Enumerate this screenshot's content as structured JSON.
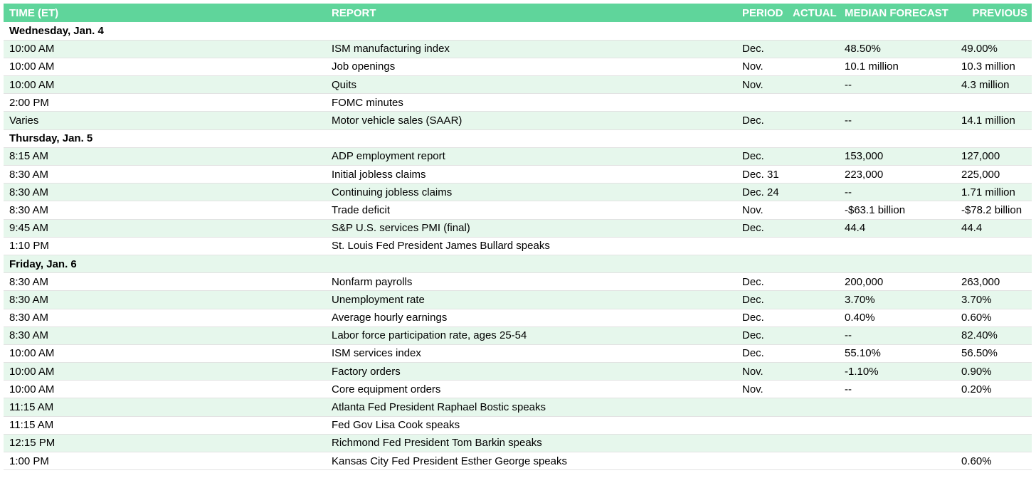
{
  "header": {
    "time": "TIME (ET)",
    "report": "REPORT",
    "period": "PERIOD",
    "actual": "ACTUAL",
    "median_forecast": "MEDIAN FORECAST",
    "previous": "PREVIOUS"
  },
  "colors": {
    "header_bg": "#5fd59b",
    "header_text": "#ffffff",
    "row_stripe": "#e6f7ec"
  },
  "rows": [
    {
      "type": "day",
      "label": "Wednesday, Jan. 4"
    },
    {
      "type": "item",
      "time": "10:00 AM",
      "report": "ISM manufacturing index",
      "period": "Dec.",
      "actual": "",
      "forecast": "48.50%",
      "previous": "49.00%"
    },
    {
      "type": "item",
      "time": "10:00 AM",
      "report": "Job openings",
      "period": "Nov.",
      "actual": "",
      "forecast": "10.1 million",
      "previous": "10.3 million"
    },
    {
      "type": "item",
      "time": "10:00 AM",
      "report": "Quits",
      "period": "Nov.",
      "actual": "",
      "forecast": "--",
      "previous": "4.3 million"
    },
    {
      "type": "item",
      "time": "2:00 PM",
      "report": "FOMC minutes",
      "period": "",
      "actual": "",
      "forecast": "",
      "previous": ""
    },
    {
      "type": "item",
      "time": "Varies",
      "report": "Motor vehicle sales (SAAR)",
      "period": "Dec.",
      "actual": "",
      "forecast": "--",
      "previous": "14.1 million"
    },
    {
      "type": "day",
      "label": "Thursday, Jan. 5"
    },
    {
      "type": "item",
      "time": "8:15 AM",
      "report": "ADP employment report",
      "period": "Dec.",
      "actual": "",
      "forecast": "153,000",
      "previous": "127,000"
    },
    {
      "type": "item",
      "time": "8:30 AM",
      "report": "Initial jobless claims",
      "period": "Dec. 31",
      "actual": "",
      "forecast": "223,000",
      "previous": "225,000"
    },
    {
      "type": "item",
      "time": "8:30 AM",
      "report": "Continuing jobless claims",
      "period": "Dec. 24",
      "actual": "",
      "forecast": "--",
      "previous": "1.71 million"
    },
    {
      "type": "item",
      "time": "8:30 AM",
      "report": "Trade deficit",
      "period": "Nov.",
      "actual": "",
      "forecast": "-$63.1 billion",
      "previous": "-$78.2 billion"
    },
    {
      "type": "item",
      "time": "9:45 AM",
      "report": "S&P U.S. services PMI (final)",
      "period": "Dec.",
      "actual": "",
      "forecast": "44.4",
      "previous": "44.4"
    },
    {
      "type": "item",
      "time": "1:10 PM",
      "report": "St. Louis Fed President James Bullard speaks",
      "period": "",
      "actual": "",
      "forecast": "",
      "previous": ""
    },
    {
      "type": "day",
      "label": "Friday, Jan. 6"
    },
    {
      "type": "item",
      "time": "8:30 AM",
      "report": "Nonfarm payrolls",
      "period": "Dec.",
      "actual": "",
      "forecast": "200,000",
      "previous": "263,000"
    },
    {
      "type": "item",
      "time": "8:30 AM",
      "report": "Unemployment rate",
      "period": "Dec.",
      "actual": "",
      "forecast": "3.70%",
      "previous": "3.70%"
    },
    {
      "type": "item",
      "time": "8:30 AM",
      "report": "Average hourly earnings",
      "period": "Dec.",
      "actual": "",
      "forecast": "0.40%",
      "previous": "0.60%"
    },
    {
      "type": "item",
      "time": "8:30 AM",
      "report": "Labor force participation rate, ages 25-54",
      "period": "Dec.",
      "actual": "",
      "forecast": "--",
      "previous": "82.40%"
    },
    {
      "type": "item",
      "time": "10:00 AM",
      "report": "ISM services index",
      "period": "Dec.",
      "actual": "",
      "forecast": "55.10%",
      "previous": "56.50%"
    },
    {
      "type": "item",
      "time": "10:00 AM",
      "report": "Factory orders",
      "period": "Nov.",
      "actual": "",
      "forecast": "-1.10%",
      "previous": "0.90%"
    },
    {
      "type": "item",
      "time": "10:00 AM",
      "report": "Core equipment orders",
      "period": "Nov.",
      "actual": "",
      "forecast": "--",
      "previous": "0.20%"
    },
    {
      "type": "item",
      "time": "11:15 AM",
      "report": "Atlanta Fed President Raphael Bostic speaks",
      "period": "",
      "actual": "",
      "forecast": "",
      "previous": ""
    },
    {
      "type": "item",
      "time": "11:15 AM",
      "report": "Fed Gov Lisa Cook speaks",
      "period": "",
      "actual": "",
      "forecast": "",
      "previous": ""
    },
    {
      "type": "item",
      "time": "12:15 PM",
      "report": "Richmond Fed President Tom Barkin speaks",
      "period": "",
      "actual": "",
      "forecast": "",
      "previous": ""
    },
    {
      "type": "item",
      "time": "1:00 PM",
      "report": "Kansas City Fed President Esther George speaks",
      "period": "",
      "actual": "",
      "forecast": "",
      "previous": "0.60%"
    }
  ]
}
